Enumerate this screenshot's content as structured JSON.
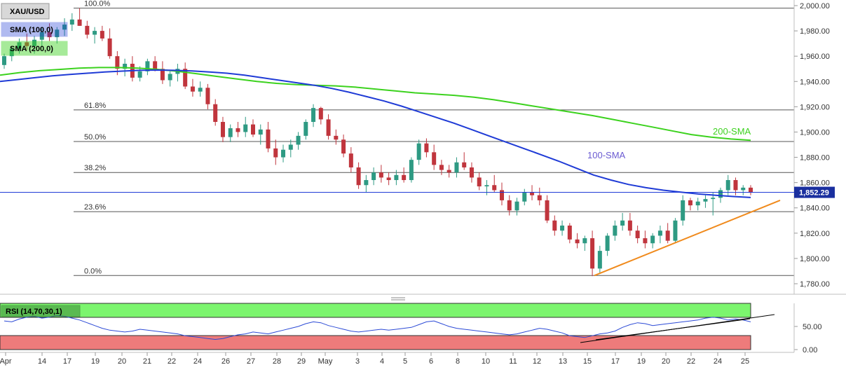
{
  "chart_data": [
    {
      "type": "candlestick",
      "title": "XAU/USD",
      "legend": [
        {
          "label": "SMA (100,0)",
          "color": "#1f3bd6"
        },
        {
          "label": "SMA (200,0)",
          "color": "#3cd21e"
        }
      ],
      "y_ticks": [
        "2,000.00",
        "1,980.00",
        "1,960.00",
        "1,940.00",
        "1,920.00",
        "1,900.00",
        "1,880.00",
        "1,860.00",
        "1,840.00",
        "1,820.00",
        "1,800.00",
        "1,780.00"
      ],
      "ylim": [
        1774,
        2004
      ],
      "x_ticks": [
        "Apr",
        "14",
        "17",
        "19",
        "20",
        "21",
        "22",
        "24",
        "26",
        "27",
        "28",
        "29",
        "May",
        "3",
        "4",
        "5",
        "6",
        "8",
        "10",
        "11",
        "12",
        "13",
        "15",
        "17",
        "19",
        "20",
        "22",
        "24",
        "25"
      ],
      "last_price": "1,852.29",
      "last_price_value": 1852.29,
      "fibonacci": [
        {
          "label": "100.0%",
          "value": 1998
        },
        {
          "label": "61.8%",
          "value": 1917.5
        },
        {
          "label": "50.0%",
          "value": 1892.5
        },
        {
          "label": "38.2%",
          "value": 1868
        },
        {
          "label": "23.6%",
          "value": 1837
        },
        {
          "label": "0.0%",
          "value": 1786.5
        }
      ],
      "annotations": [
        {
          "text": "200-SMA",
          "color": "#3cd21e"
        },
        {
          "text": "100-SMA",
          "color": "#6b5bd2"
        }
      ],
      "candles": [
        [
          1953,
          1962,
          1950,
          1960
        ],
        [
          1960,
          1968,
          1956,
          1966
        ],
        [
          1966,
          1974,
          1962,
          1971
        ],
        [
          1971,
          1978,
          1965,
          1968
        ],
        [
          1968,
          1976,
          1962,
          1973
        ],
        [
          1973,
          1982,
          1968,
          1979
        ],
        [
          1979,
          1986,
          1972,
          1975
        ],
        [
          1975,
          1983,
          1970,
          1981
        ],
        [
          1981,
          1990,
          1976,
          1985
        ],
        [
          1985,
          1994,
          1980,
          1989
        ],
        [
          1989,
          1998,
          1984,
          1984
        ],
        [
          1984,
          1988,
          1974,
          1977
        ],
        [
          1977,
          1983,
          1970,
          1980
        ],
        [
          1980,
          1984,
          1972,
          1974
        ],
        [
          1974,
          1982,
          1958,
          1960
        ],
        [
          1960,
          1964,
          1945,
          1950
        ],
        [
          1950,
          1958,
          1944,
          1954
        ],
        [
          1954,
          1960,
          1940,
          1943
        ],
        [
          1943,
          1952,
          1940,
          1948
        ],
        [
          1948,
          1958,
          1945,
          1956
        ],
        [
          1956,
          1960,
          1948,
          1950
        ],
        [
          1950,
          1956,
          1938,
          1941
        ],
        [
          1941,
          1948,
          1936,
          1946
        ],
        [
          1946,
          1954,
          1940,
          1950
        ],
        [
          1950,
          1955,
          1934,
          1936
        ],
        [
          1936,
          1942,
          1928,
          1932
        ],
        [
          1932,
          1940,
          1928,
          1935
        ],
        [
          1935,
          1938,
          1918,
          1922
        ],
        [
          1922,
          1926,
          1905,
          1908
        ],
        [
          1908,
          1912,
          1892,
          1896
        ],
        [
          1896,
          1906,
          1892,
          1903
        ],
        [
          1903,
          1908,
          1896,
          1900
        ],
        [
          1900,
          1912,
          1896,
          1906
        ],
        [
          1906,
          1910,
          1896,
          1898
        ],
        [
          1898,
          1906,
          1890,
          1902
        ],
        [
          1902,
          1908,
          1884,
          1887
        ],
        [
          1887,
          1894,
          1874,
          1880
        ],
        [
          1880,
          1890,
          1876,
          1886
        ],
        [
          1886,
          1894,
          1880,
          1890
        ],
        [
          1890,
          1900,
          1886,
          1897
        ],
        [
          1897,
          1910,
          1894,
          1908
        ],
        [
          1908,
          1922,
          1904,
          1919
        ],
        [
          1919,
          1920,
          1906,
          1910
        ],
        [
          1910,
          1914,
          1894,
          1897
        ],
        [
          1897,
          1902,
          1890,
          1894
        ],
        [
          1894,
          1898,
          1880,
          1883
        ],
        [
          1883,
          1888,
          1868,
          1872
        ],
        [
          1872,
          1876,
          1855,
          1858
        ],
        [
          1858,
          1866,
          1852,
          1862
        ],
        [
          1862,
          1872,
          1858,
          1868
        ],
        [
          1868,
          1874,
          1860,
          1864
        ],
        [
          1864,
          1868,
          1858,
          1862
        ],
        [
          1862,
          1870,
          1858,
          1866
        ],
        [
          1866,
          1872,
          1860,
          1862
        ],
        [
          1862,
          1880,
          1860,
          1878
        ],
        [
          1878,
          1894,
          1874,
          1891
        ],
        [
          1891,
          1895,
          1880,
          1884
        ],
        [
          1884,
          1890,
          1870,
          1874
        ],
        [
          1874,
          1878,
          1866,
          1870
        ],
        [
          1870,
          1874,
          1864,
          1868
        ],
        [
          1868,
          1880,
          1864,
          1876
        ],
        [
          1876,
          1884,
          1870,
          1872
        ],
        [
          1872,
          1876,
          1860,
          1864
        ],
        [
          1864,
          1868,
          1854,
          1857
        ],
        [
          1857,
          1862,
          1850,
          1858
        ],
        [
          1858,
          1866,
          1852,
          1854
        ],
        [
          1854,
          1860,
          1842,
          1846
        ],
        [
          1846,
          1850,
          1834,
          1838
        ],
        [
          1838,
          1848,
          1834,
          1845
        ],
        [
          1845,
          1855,
          1842,
          1852
        ],
        [
          1852,
          1858,
          1846,
          1850
        ],
        [
          1850,
          1856,
          1842,
          1846
        ],
        [
          1846,
          1850,
          1828,
          1830
        ],
        [
          1830,
          1834,
          1818,
          1822
        ],
        [
          1822,
          1830,
          1818,
          1826
        ],
        [
          1826,
          1828,
          1812,
          1815
        ],
        [
          1815,
          1820,
          1808,
          1812
        ],
        [
          1812,
          1818,
          1806,
          1816
        ],
        [
          1816,
          1822,
          1786,
          1792
        ],
        [
          1792,
          1810,
          1788,
          1806
        ],
        [
          1806,
          1820,
          1802,
          1818
        ],
        [
          1818,
          1830,
          1814,
          1826
        ],
        [
          1826,
          1836,
          1822,
          1830
        ],
        [
          1830,
          1836,
          1818,
          1822
        ],
        [
          1822,
          1826,
          1812,
          1816
        ],
        [
          1816,
          1822,
          1808,
          1812
        ],
        [
          1812,
          1820,
          1808,
          1818
        ],
        [
          1818,
          1826,
          1812,
          1822
        ],
        [
          1822,
          1828,
          1812,
          1814
        ],
        [
          1814,
          1832,
          1812,
          1830
        ],
        [
          1830,
          1850,
          1826,
          1846
        ],
        [
          1846,
          1848,
          1838,
          1842
        ],
        [
          1842,
          1848,
          1838,
          1845
        ],
        [
          1845,
          1850,
          1840,
          1847
        ],
        [
          1847,
          1852,
          1834,
          1848
        ],
        [
          1848,
          1856,
          1844,
          1854
        ],
        [
          1854,
          1866,
          1850,
          1862
        ],
        [
          1862,
          1864,
          1850,
          1854
        ],
        [
          1854,
          1858,
          1850,
          1856
        ],
        [
          1856,
          1858,
          1850,
          1852
        ]
      ],
      "sma100": [
        1940,
        1941.5,
        1943,
        1944.5,
        1945.5,
        1946.5,
        1947.5,
        1948.2,
        1948.8,
        1949,
        1948.8,
        1948.3,
        1947.5,
        1946.5,
        1945,
        1943,
        1941,
        1939,
        1937,
        1934.5,
        1931.5,
        1928,
        1924.5,
        1920.5,
        1916,
        1911.5,
        1907,
        1902,
        1897,
        1892,
        1887,
        1882,
        1877,
        1871.5,
        1866,
        1862,
        1858.5,
        1856,
        1854,
        1852.5,
        1851,
        1850,
        1849,
        1848.2
      ],
      "sma200": [
        1945,
        1947,
        1948.5,
        1949.5,
        1950.5,
        1951,
        1951,
        1950.5,
        1949.5,
        1948,
        1946,
        1944,
        1942,
        1940,
        1938.5,
        1937.5,
        1937,
        1936.5,
        1935.5,
        1934,
        1932.5,
        1931,
        1930,
        1929,
        1927.5,
        1925.5,
        1923,
        1920.5,
        1918,
        1915.5,
        1913,
        1910,
        1907,
        1904,
        1901,
        1898,
        1896,
        1894.5,
        1893.5
      ],
      "rsi_panel": {
        "label": "RSI (14,70,30,1)",
        "overbought": 70,
        "oversold": 30,
        "y_ticks": [
          "50.00",
          "0.00"
        ],
        "ylim": [
          0,
          100
        ],
        "values": [
          62,
          60,
          66,
          70,
          72,
          68,
          70,
          74,
          72,
          68,
          64,
          58,
          52,
          46,
          42,
          40,
          38,
          40,
          44,
          42,
          40,
          38,
          36,
          34,
          30,
          28,
          26,
          24,
          22,
          24,
          28,
          32,
          34,
          38,
          36,
          34,
          38,
          42,
          46,
          50,
          56,
          60,
          58,
          52,
          48,
          44,
          40,
          38,
          40,
          42,
          44,
          42,
          44,
          46,
          48,
          54,
          60,
          62,
          56,
          50,
          46,
          44,
          42,
          40,
          38,
          36,
          34,
          32,
          34,
          38,
          42,
          46,
          44,
          40,
          36,
          30,
          28,
          26,
          30,
          34,
          36,
          40,
          48,
          54,
          58,
          56,
          52,
          54,
          56,
          58,
          60,
          62,
          64,
          68,
          70,
          68,
          64,
          66,
          64,
          60
        ]
      }
    }
  ]
}
